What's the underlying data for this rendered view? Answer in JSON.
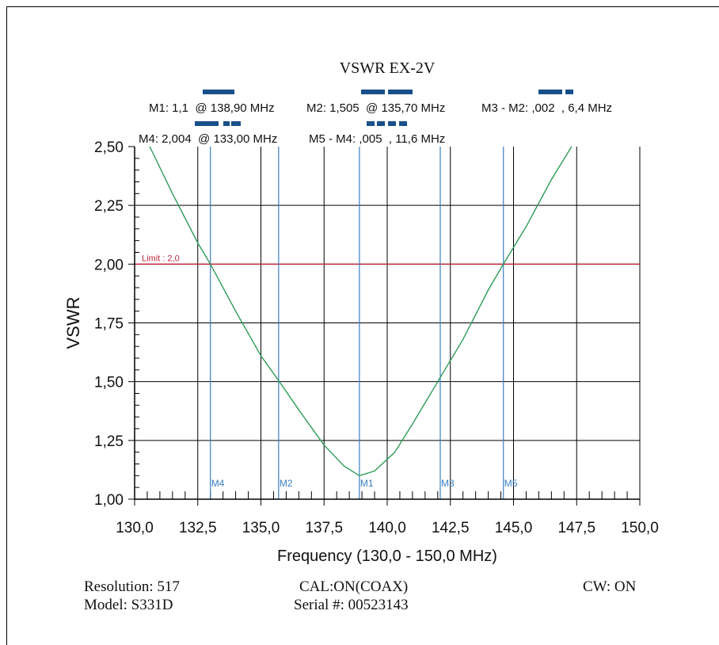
{
  "chart_data": {
    "type": "line",
    "title": "VSWR EX-2V",
    "xlabel": "Frequency (130,0 - 150,0 MHz)",
    "ylabel": "VSWR",
    "xlim": [
      130.0,
      150.0
    ],
    "ylim": [
      1.0,
      2.5
    ],
    "x_ticks": [
      "130,0",
      "132,5",
      "135,0",
      "137,5",
      "140,0",
      "142,5",
      "145,0",
      "147,5",
      "150,0"
    ],
    "y_ticks": [
      "1,00",
      "1,25",
      "1,50",
      "1,75",
      "2,00",
      "2,25",
      "2,50"
    ],
    "grid": true,
    "series": [
      {
        "color": "#2e9b57",
        "x": [
          130.6,
          131.5,
          132.5,
          133.0,
          134.0,
          135.0,
          135.7,
          136.5,
          137.5,
          138.3,
          138.9,
          139.5,
          140.3,
          141.0,
          142.0,
          143.0,
          144.0,
          144.6,
          145.5,
          146.5,
          147.3
        ],
        "y": [
          2.5,
          2.3,
          2.09,
          2.0,
          1.8,
          1.61,
          1.505,
          1.38,
          1.23,
          1.14,
          1.1,
          1.12,
          1.2,
          1.32,
          1.5,
          1.68,
          1.89,
          2.0,
          2.16,
          2.36,
          2.5
        ]
      }
    ],
    "limit": {
      "label": "Limit : 2,0",
      "value": 2.0,
      "color": "#c0283a"
    },
    "markers": [
      {
        "name": "M1",
        "x": 138.9
      },
      {
        "name": "M2",
        "x": 135.7
      },
      {
        "name": "M3",
        "x": 142.1
      },
      {
        "name": "M4",
        "x": 133.0
      },
      {
        "name": "M5",
        "x": 144.6
      }
    ],
    "marker_color": "#3a7fc0",
    "readouts": [
      "M1: 1,1  @ 138,90 MHz",
      "M2: 1,505  @ 135,70 MHz",
      "M3 - M2: ,002  , 6,4 MHz",
      "M4: 2,004  @ 133,00 MHz",
      "M5 - M4: ,005  , 11,6 MHz"
    ]
  },
  "footer": {
    "resolution": "Resolution:  517",
    "model": "Model: S331D",
    "cal": "CAL:ON(COAX)",
    "serial": "Serial #: 00523143",
    "cw": "CW: ON"
  }
}
